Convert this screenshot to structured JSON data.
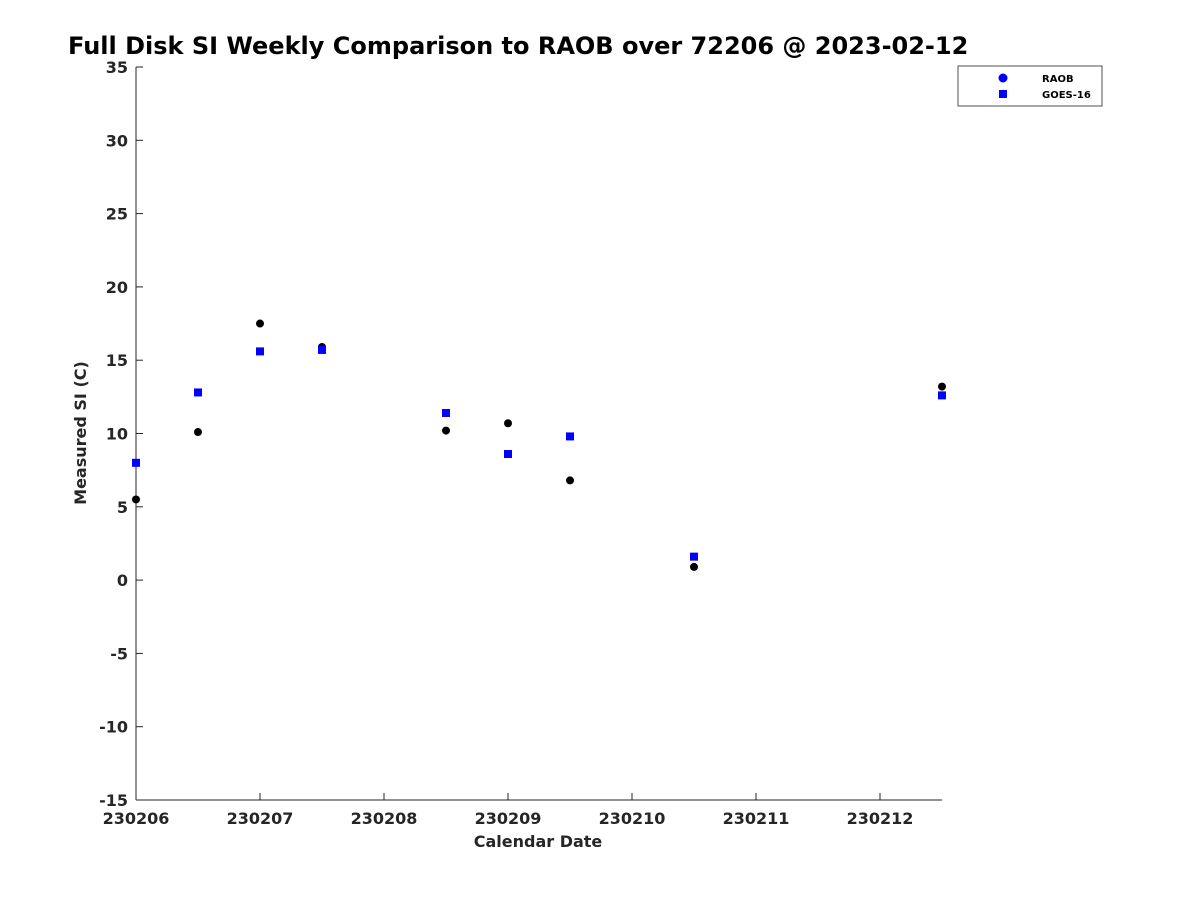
{
  "chart_data": {
    "type": "scatter",
    "title": "Full Disk SI Weekly Comparison to RAOB over 72206 @ 2023-02-12",
    "xlabel": "Calendar Date",
    "ylabel": "Measured SI (C)",
    "xlim": [
      230206,
      230212.5
    ],
    "ylim": [
      -15,
      35
    ],
    "xticks": [
      230206,
      230207,
      230208,
      230209,
      230210,
      230211,
      230212
    ],
    "xtick_labels": [
      "230206",
      "230207",
      "230208",
      "230209",
      "230210",
      "230211",
      "230212"
    ],
    "yticks": [
      -15,
      -10,
      -5,
      0,
      5,
      10,
      15,
      20,
      25,
      30,
      35
    ],
    "ytick_labels": [
      "-15",
      "-10",
      "-5",
      "0",
      "5",
      "10",
      "15",
      "20",
      "25",
      "30",
      "35"
    ],
    "grid": false,
    "legend_position": "top-right",
    "series": [
      {
        "name": "RAOB",
        "marker": "circle",
        "color": "#000000",
        "legend_color": "#0000ff",
        "x": [
          230206,
          230206.5,
          230207,
          230207.5,
          230208.5,
          230209,
          230209.5,
          230210.5,
          230212.5
        ],
        "y": [
          5.5,
          10.1,
          17.5,
          15.9,
          10.2,
          10.7,
          6.8,
          0.9,
          13.2
        ]
      },
      {
        "name": "GOES-16",
        "marker": "square",
        "color": "#0000ff",
        "x": [
          230206,
          230206.5,
          230207,
          230207.5,
          230208.5,
          230209,
          230209.5,
          230210.5,
          230212.5
        ],
        "y": [
          8.0,
          12.8,
          15.6,
          15.7,
          11.4,
          8.6,
          9.8,
          1.6,
          12.6
        ]
      }
    ]
  }
}
